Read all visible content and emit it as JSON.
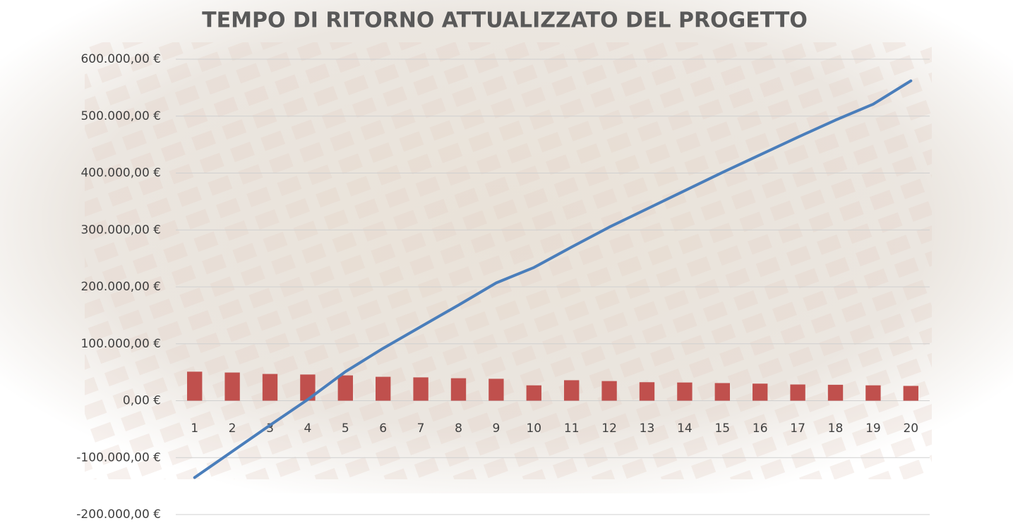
{
  "chart_data": {
    "type": "bar",
    "title": "TEMPO DI RITORNO ATTUALIZZATO DEL PROGETTO",
    "categories": [
      "1",
      "2",
      "3",
      "4",
      "5",
      "6",
      "7",
      "8",
      "9",
      "10",
      "11",
      "12",
      "13",
      "14",
      "15",
      "16",
      "17",
      "18",
      "19",
      "20"
    ],
    "series": [
      {
        "type": "bar",
        "color": "#c0504d",
        "values": [
          51000,
          49500,
          47000,
          46000,
          44500,
          42000,
          41000,
          39500,
          38500,
          27000,
          36000,
          34500,
          32500,
          32000,
          31000,
          30000,
          28500,
          28000,
          27000,
          26000
        ]
      },
      {
        "type": "line",
        "color": "#4a7ebb",
        "values": [
          -135000,
          -89000,
          -43000,
          2000,
          51000,
          92000,
          130000,
          168000,
          207000,
          234000,
          270000,
          305000,
          337000,
          369000,
          401000,
          432000,
          463000,
          493000,
          521000,
          562000
        ]
      }
    ],
    "ylim": [
      -200000,
      600000
    ],
    "yticks": [
      {
        "value": -200000,
        "label": "-200.000,00 €"
      },
      {
        "value": -100000,
        "label": "-100.000,00 €"
      },
      {
        "value": 0,
        "label": "0,00 €"
      },
      {
        "value": 100000,
        "label": "100.000,00 €"
      },
      {
        "value": 200000,
        "label": "200.000,00 €"
      },
      {
        "value": 300000,
        "label": "300.000,00 €"
      },
      {
        "value": 400000,
        "label": "400.000,00 €"
      },
      {
        "value": 500000,
        "label": "500.000,00 €"
      },
      {
        "value": 600000,
        "label": "600.000,00 €"
      }
    ],
    "grid": true
  }
}
